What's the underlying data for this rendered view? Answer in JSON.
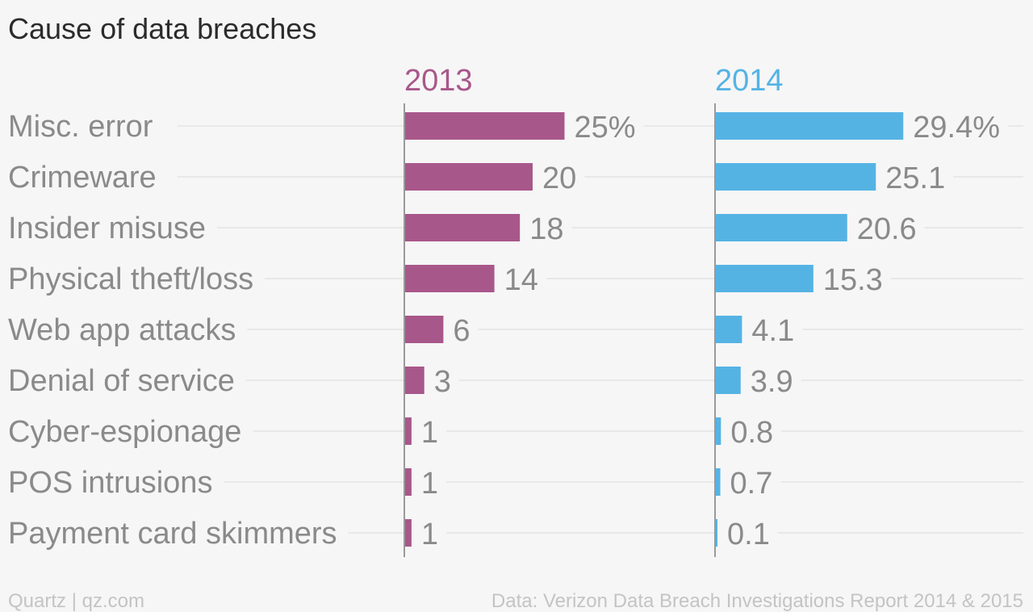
{
  "chart_data": {
    "type": "bar",
    "orientation": "horizontal",
    "title": "Cause of data breaches",
    "categories": [
      "Misc. error",
      "Crimeware",
      "Insider misuse",
      "Physical theft/loss",
      "Web app attacks",
      "Denial of service",
      "Cyber-espionage",
      "POS intrusions",
      "Payment card skimmers"
    ],
    "series": [
      {
        "name": "2013",
        "color": "#a8578a",
        "values": [
          25,
          20,
          18,
          14,
          6,
          3,
          1,
          1,
          1
        ],
        "labels": [
          "25%",
          "20",
          "18",
          "14",
          "6",
          "3",
          "1",
          "1",
          "1"
        ]
      },
      {
        "name": "2014",
        "color": "#55b3e4",
        "values": [
          29.4,
          25.1,
          20.6,
          15.3,
          4.1,
          3.9,
          0.8,
          0.7,
          0.1
        ],
        "labels": [
          "29.4%",
          "25.1",
          "20.6",
          "15.3",
          "4.1",
          "3.9",
          "0.8",
          "0.7",
          "0.1"
        ]
      }
    ],
    "xlim": [
      0,
      30
    ],
    "grid": true,
    "legend": "none"
  },
  "footer": {
    "source_left": "Quartz | qz.com",
    "source_right": "Data: Verizon Data Breach Investigations Report 2014 & 2015"
  }
}
